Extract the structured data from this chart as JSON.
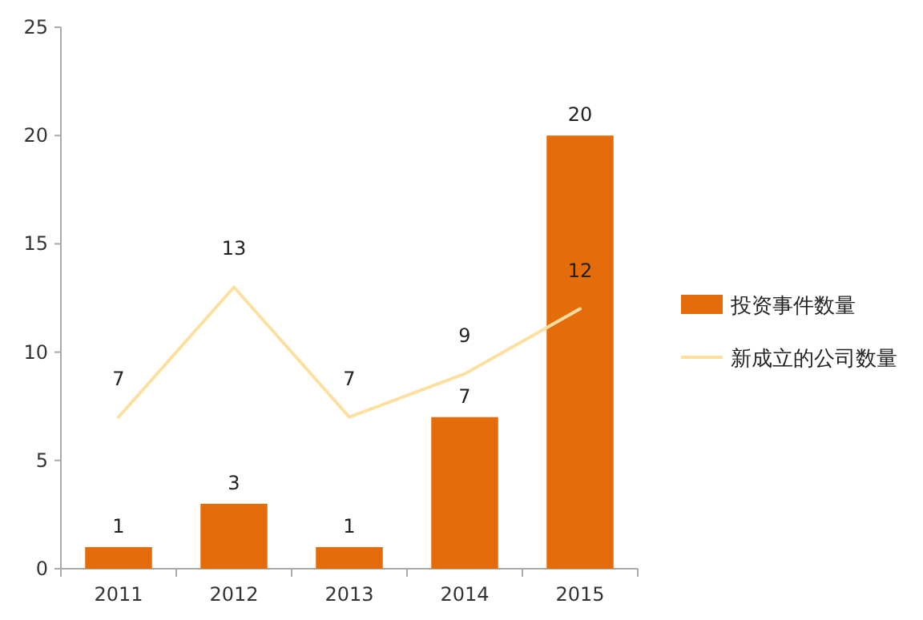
{
  "chart_data": {
    "type": "bar",
    "categories": [
      "2011",
      "2012",
      "2013",
      "2014",
      "2015"
    ],
    "series": [
      {
        "name": "投资事件数量",
        "color": "#e46c0a",
        "values": [
          1,
          3,
          1,
          7,
          20
        ]
      },
      {
        "name": "新成立的公司数量",
        "type": "line",
        "color": "#fde0a0",
        "values": [
          7,
          13,
          7,
          9,
          12
        ]
      }
    ],
    "ylim": [
      0,
      25
    ],
    "yticks": [
      0,
      5,
      10,
      15,
      20,
      25
    ],
    "data_labels": true,
    "legend": "right",
    "grid": false
  }
}
